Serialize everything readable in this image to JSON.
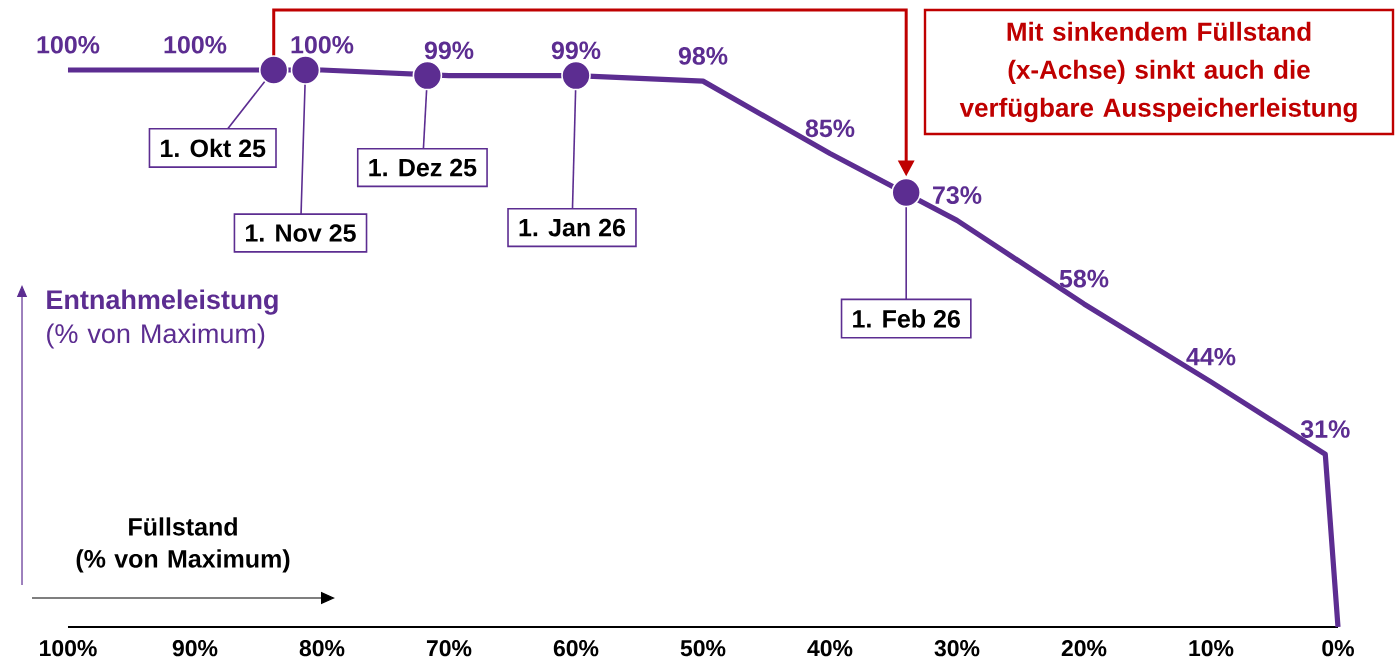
{
  "chart_data": {
    "type": "line",
    "xlabel": "Füllstand (% von Maximum)",
    "ylabel": "**Entnahmeleistung** (% von Maximum)",
    "xlim": [
      100,
      0
    ],
    "tick_labels": "x",
    "xticks": [
      {
        "value": 100,
        "label": "100%"
      },
      {
        "value": 90,
        "label": "90%"
      },
      {
        "value": 80,
        "label": "80%"
      },
      {
        "value": 70,
        "label": "70%"
      },
      {
        "value": 60,
        "label": "60%"
      },
      {
        "value": 50,
        "label": "50%"
      },
      {
        "value": 40,
        "label": "40%"
      },
      {
        "value": 30,
        "label": "30%"
      },
      {
        "value": 20,
        "label": "20%"
      },
      {
        "value": 10,
        "label": "10%"
      },
      {
        "value": 0,
        "label": "0%"
      }
    ],
    "series": [
      {
        "color": "#5c2d91",
        "marker": "none",
        "x": [
          100,
          90,
          80,
          70,
          60,
          50,
          40,
          30,
          20,
          10,
          1,
          0
        ],
        "values": [
          100,
          100,
          100,
          99,
          99,
          98,
          85,
          73,
          58,
          44,
          31,
          0
        ],
        "value_labels": [
          "100%",
          "100%",
          "100%",
          "99%",
          "99%",
          "98%",
          "85%",
          "73%",
          "58%",
          "44%",
          "31%",
          null
        ]
      },
      {
        "type": "scatter",
        "color": "#5c2d91",
        "marker": "circle",
        "x": [
          83.8,
          81.3,
          71.7,
          60,
          34
        ],
        "values": [
          100,
          100,
          99,
          99,
          78
        ]
      }
    ],
    "annotations": [
      {
        "text": "1. Okt 25",
        "x": 83.8,
        "y": 100
      },
      {
        "text": "1. Nov 25",
        "x": 81.3,
        "y": 100
      },
      {
        "text": "1. Dez 25",
        "x": 71.7,
        "y": 99
      },
      {
        "text": "1. Jan 26",
        "x": 60,
        "y": 99
      },
      {
        "text": "1. Feb 26",
        "x": 34,
        "y": 78
      },
      "Mit sinkendem Füllstand (x-Achse) sinkt auch die verfügbare Ausspeicherleistung"
    ]
  }
}
